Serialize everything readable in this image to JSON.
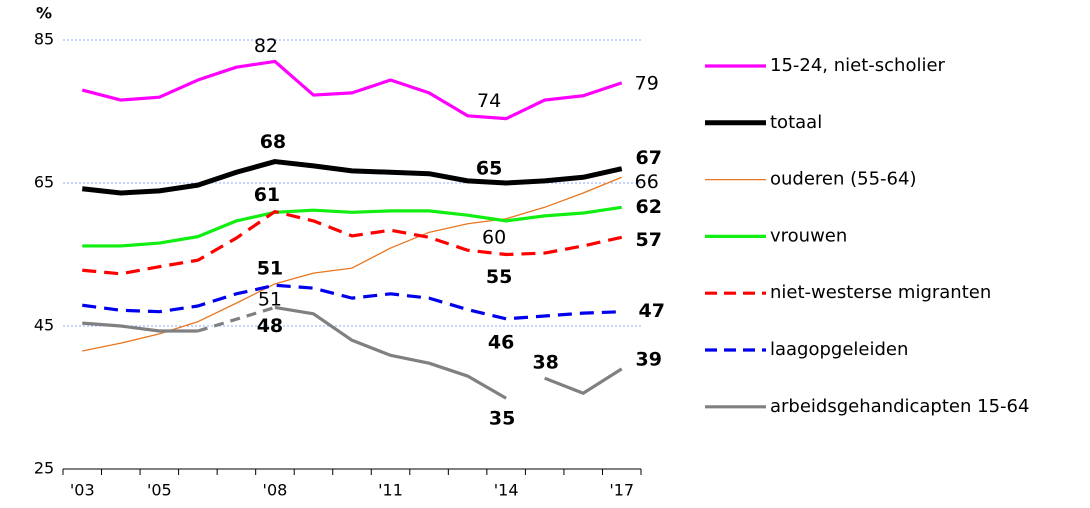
{
  "chart_data": {
    "type": "line",
    "y_label": "%",
    "categories": [
      "'03",
      null,
      "'05",
      null,
      null,
      "'08",
      null,
      null,
      "'11",
      null,
      null,
      "'14",
      null,
      null,
      "'17"
    ],
    "ylim": [
      25,
      85
    ],
    "yticks": [
      25,
      45,
      65,
      85
    ],
    "grid": true,
    "legend": "right",
    "series": [
      {
        "name": "15-24, niet-scholier",
        "color": "#ff00ff",
        "weight": "normal",
        "style": "solid",
        "bold_labels": false,
        "values": [
          78,
          76.6,
          77,
          79.4,
          81.2,
          82,
          77.3,
          77.6,
          79.4,
          77.6,
          74.4,
          74,
          76.6,
          77.2,
          79
        ],
        "value_labels": [
          null,
          null,
          null,
          null,
          null,
          "82",
          null,
          null,
          null,
          null,
          null,
          "74",
          null,
          null,
          "79"
        ]
      },
      {
        "name": "totaal",
        "color": "#000000",
        "weight": "thick",
        "style": "solid",
        "bold_labels": true,
        "values": [
          64.2,
          63.6,
          63.9,
          64.7,
          66.5,
          68,
          67.4,
          66.7,
          66.5,
          66.3,
          65.3,
          65,
          65.3,
          65.8,
          67
        ],
        "value_labels": [
          null,
          null,
          null,
          null,
          null,
          "68",
          null,
          null,
          null,
          null,
          null,
          "65",
          null,
          null,
          "67"
        ]
      },
      {
        "name": "ouderen (55-64)",
        "color": "#e8761f",
        "weight": "thin",
        "style": "solid",
        "bold_labels": false,
        "values": [
          41.5,
          42.6,
          43.9,
          45.6,
          48.2,
          50.9,
          52.4,
          53.1,
          55.9,
          58.1,
          59.3,
          60,
          61.6,
          63.6,
          65.8
        ],
        "value_labels": [
          null,
          null,
          null,
          null,
          null,
          "51",
          null,
          null,
          null,
          null,
          null,
          "60",
          null,
          null,
          "66"
        ]
      },
      {
        "name": "vrouwen",
        "color": "#11ee11",
        "weight": "normal",
        "style": "solid",
        "bold_labels": true,
        "values": [
          56.2,
          56.2,
          56.6,
          57.5,
          59.7,
          60.9,
          61.2,
          60.9,
          61.1,
          61.1,
          60.5,
          59.7,
          60.4,
          60.8,
          61.6
        ],
        "value_labels": [
          null,
          null,
          null,
          null,
          null,
          null,
          null,
          null,
          null,
          null,
          null,
          null,
          null,
          null,
          "62"
        ]
      },
      {
        "name": "niet-westerse migranten",
        "color": "#ff0000",
        "weight": "normal",
        "style": "dashed",
        "bold_labels": true,
        "values": [
          52.8,
          52.3,
          53.3,
          54.2,
          57.3,
          61,
          59.7,
          57.6,
          58.4,
          57.4,
          55.6,
          55,
          55.2,
          56.2,
          57.4
        ],
        "value_labels": [
          null,
          null,
          null,
          null,
          null,
          "61",
          null,
          null,
          null,
          null,
          null,
          "55",
          null,
          null,
          "57"
        ]
      },
      {
        "name": "laagopgeleiden",
        "color": "#0000ee",
        "weight": "normal",
        "style": "dashed",
        "bold_labels": true,
        "values": [
          47.9,
          47.2,
          47,
          47.8,
          49.5,
          50.7,
          50.3,
          48.9,
          49.5,
          48.9,
          47.3,
          46,
          46.4,
          46.8,
          47
        ],
        "value_labels": [
          null,
          null,
          null,
          null,
          null,
          "51",
          null,
          null,
          null,
          null,
          null,
          "46",
          null,
          null,
          "47"
        ]
      },
      {
        "name": "arbeidsgehandicapten 15-64",
        "color": "#808080",
        "weight": "normal",
        "style": "solid",
        "bold_labels": true,
        "bridge_gaps": true,
        "breaks": [
          12
        ],
        "values": [
          45.4,
          45,
          44.3,
          44.3,
          null,
          47.6,
          46.7,
          43,
          40.9,
          39.8,
          38,
          34.9,
          37.7,
          35.6,
          39
        ],
        "value_labels": [
          null,
          null,
          null,
          null,
          null,
          "48",
          null,
          null,
          null,
          null,
          null,
          "35",
          "38",
          null,
          "39"
        ]
      }
    ]
  }
}
